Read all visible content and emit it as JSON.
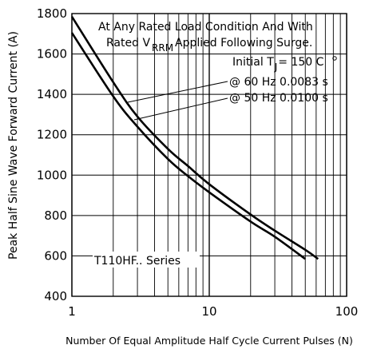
{
  "chart_data": {
    "type": "line",
    "x_scale": "log",
    "xlim": [
      1,
      100
    ],
    "ylim": [
      400,
      1800
    ],
    "x_ticks": [
      "1",
      "10",
      "100"
    ],
    "y_ticks": [
      "400",
      "600",
      "800",
      "1000",
      "1200",
      "1400",
      "1600",
      "1800"
    ],
    "xlabel": "Number Of Equal Amplitude Half Cycle Current Pulses (N)",
    "ylabel": "Peak Half Sine Wave Forward Current (A)",
    "grid": true,
    "series": [
      {
        "name": "@ 60 Hz 0.0083 s",
        "x": [
          1,
          2,
          3,
          5,
          7,
          10,
          20,
          30,
          50,
          62
        ],
        "y": [
          1785,
          1460,
          1290,
          1130,
          1045,
          955,
          805,
          725,
          630,
          585
        ]
      },
      {
        "name": "@ 50 Hz 0.0100 s",
        "x": [
          1,
          2,
          3,
          5,
          7,
          10,
          20,
          30,
          50
        ],
        "y": [
          1705,
          1390,
          1240,
          1080,
          995,
          915,
          770,
          695,
          585
        ]
      }
    ],
    "annotations": {
      "condition_line1": "At Any Rated Load Condition And With",
      "condition_line2_pre": "Rated V",
      "condition_line2_sub": "RRM",
      "condition_line2_post": "Applied Following Surge.",
      "initial_pre": "Initial T",
      "initial_sub": "J",
      "initial_post": "= 150  C",
      "series_note": "T110HF.. Series"
    }
  }
}
